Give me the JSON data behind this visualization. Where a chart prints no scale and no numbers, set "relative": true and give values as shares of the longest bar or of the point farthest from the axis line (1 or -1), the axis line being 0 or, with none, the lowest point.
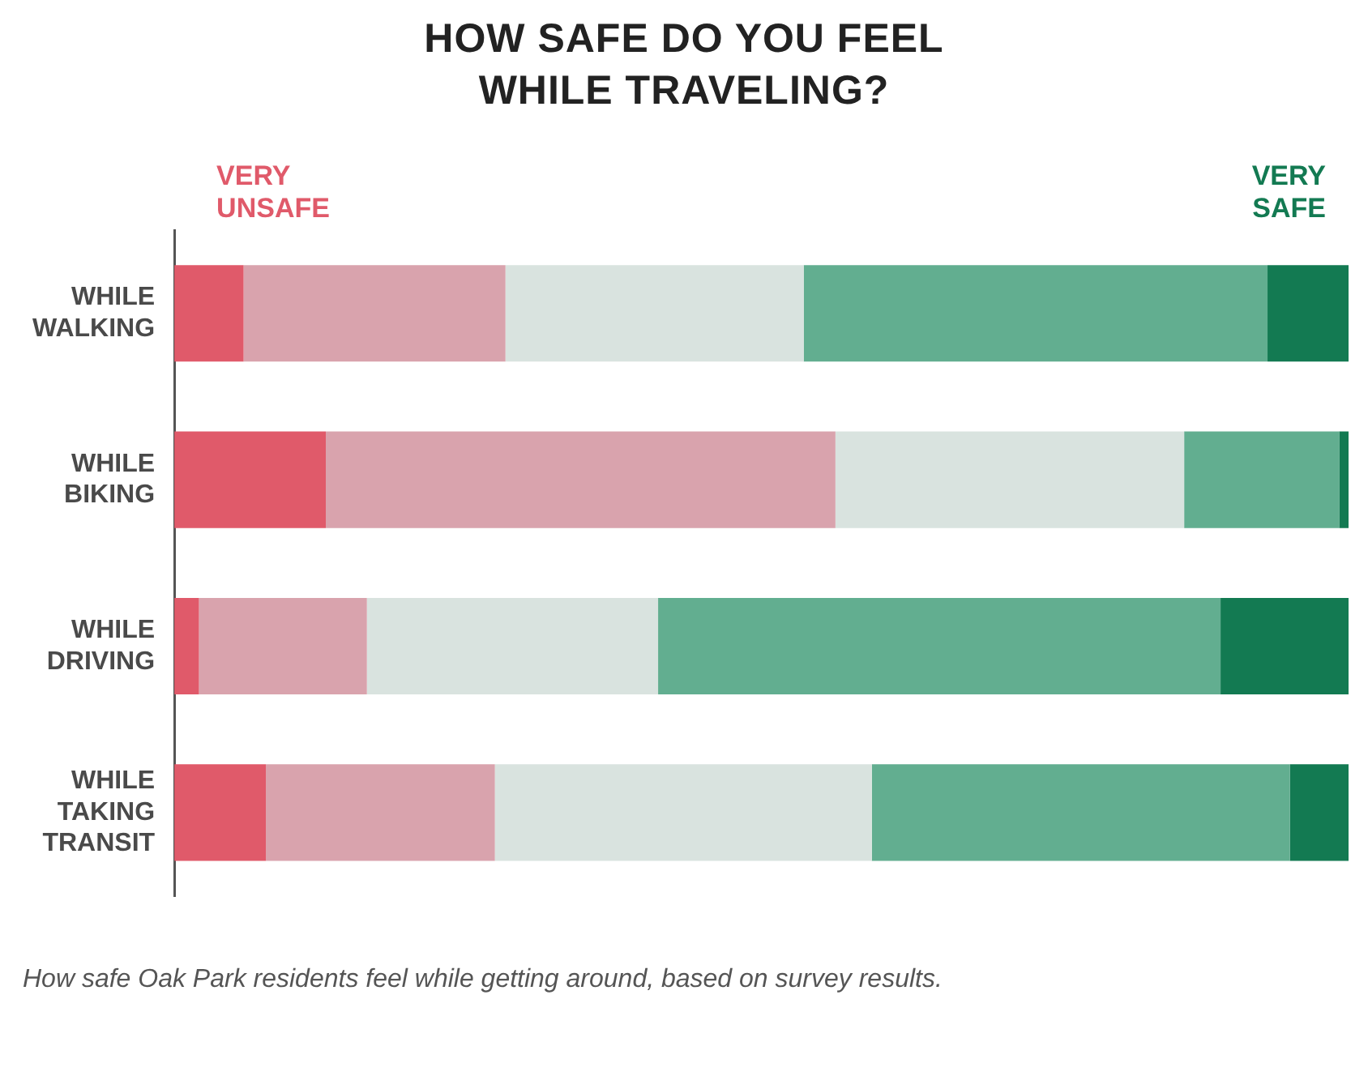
{
  "chart_data": {
    "type": "bar",
    "orientation": "horizontal",
    "stacked": true,
    "relative": true,
    "legend": false,
    "grid": false,
    "title": "HOW SAFE DO YOU FEEL WHILE TRAVELING?",
    "categories": [
      "WHILE WALKING",
      "WHILE BIKING",
      "WHILE DRIVING",
      "WHILE TAKING TRANSIT"
    ],
    "series": [
      {
        "color": "#e05a6a",
        "values": [
          0.059,
          0.129,
          0.021,
          0.078
        ]
      },
      {
        "color": "#d9a3ad",
        "values": [
          0.223,
          0.434,
          0.143,
          0.195
        ]
      },
      {
        "color": "#d9e3df",
        "values": [
          0.254,
          0.297,
          0.248,
          0.321
        ]
      },
      {
        "color": "#62ae90",
        "values": [
          0.395,
          0.132,
          0.479,
          0.356
        ]
      },
      {
        "color": "#137a52",
        "values": [
          0.069,
          0.008,
          0.109,
          0.05
        ]
      }
    ],
    "annotations": [
      "VERY UNSAFE",
      "VERY SAFE",
      "How safe Oak Park residents feel while getting around, based on survey results."
    ]
  }
}
